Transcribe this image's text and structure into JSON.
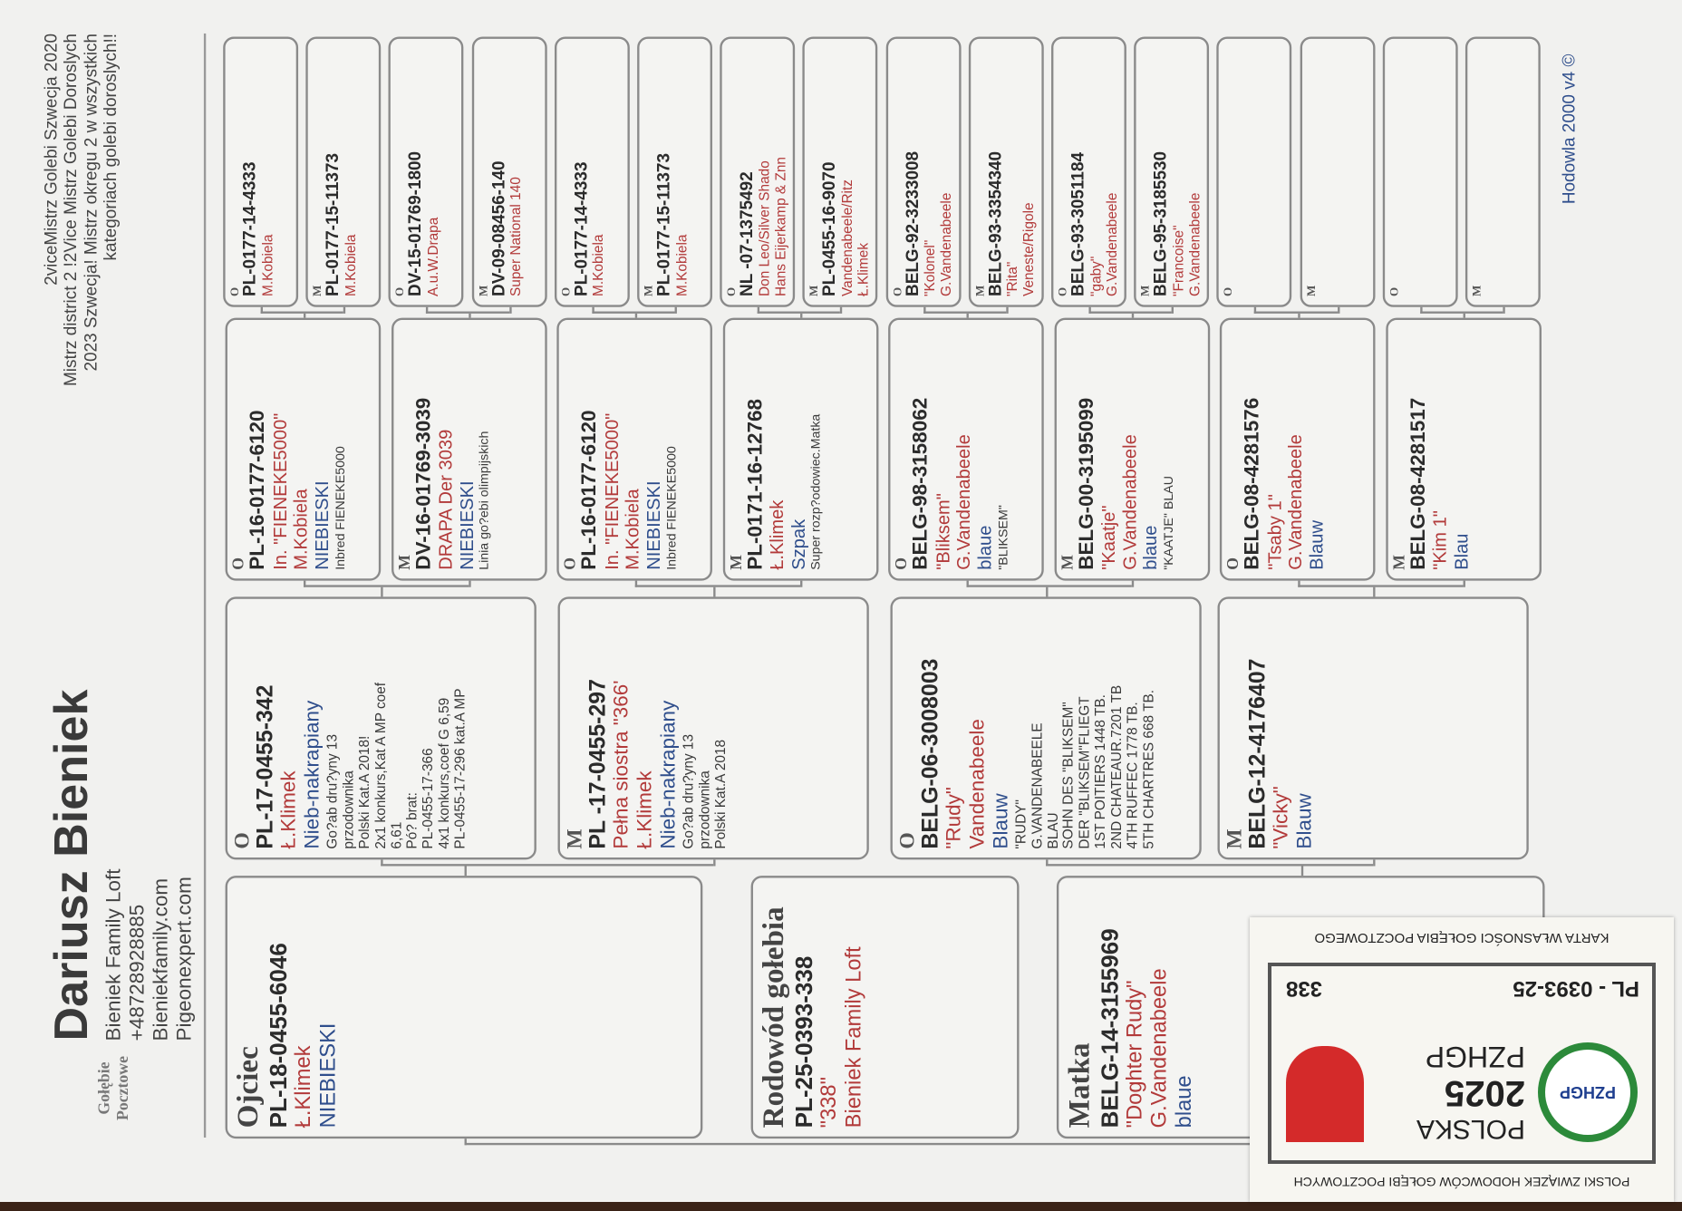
{
  "header": {
    "name": "Dariusz Bieniek",
    "logo": "Gołębie Pocztowe",
    "contact": [
      "Bieniek Family Loft",
      "+48728928885",
      "Bieniekfamily.com",
      "Pigeonexpert.com"
    ],
    "achievements": [
      "2viceMistrz Golebi Szwecja 2020",
      "Mistrz district 2 !2Vice Mistrz Golebi Doroslych",
      "2023 Szwecja! Mistrz okregu 2 w wszystkich",
      "kategoriach golebi doroslych!!"
    ]
  },
  "pedigree": {
    "father": {
      "label": "Ojciec",
      "ring": "PL-18-0455-6046",
      "lines": [
        {
          "text": "Ł.Klimek",
          "tone": "red"
        },
        {
          "text": "NIEBIESKI",
          "tone": "blue"
        }
      ]
    },
    "subject": {
      "label": "Rodowód gołebia",
      "ring": "PL-25-0393-338",
      "lines": [
        {
          "text": "\"338\"",
          "tone": "red"
        },
        {
          "text": "Bieniek Family Loft",
          "tone": "red"
        }
      ]
    },
    "mother": {
      "label": "Matka",
      "ring": "BELG-14-3155969",
      "lines": [
        {
          "text": "\"Doghter Rudy\"",
          "tone": "red"
        },
        {
          "text": "G.Vandenabeele",
          "tone": "red"
        },
        {
          "text": "blaue",
          "tone": "blue"
        }
      ]
    },
    "gen2": [
      {
        "sex": "O",
        "ring": "PL-17-0455-342",
        "lines": [
          {
            "text": "Ł.Klimek",
            "tone": "red"
          },
          {
            "text": "Nieb-nakrapiany",
            "tone": "blue"
          },
          {
            "text": "Go?ab dru?yny 13",
            "tone": "note"
          },
          {
            "text": "przodownika",
            "tone": "note"
          },
          {
            "text": "Polski Kat.A 2018!",
            "tone": "note"
          },
          {
            "text": "2x1 konkurs,Kat A MP coef",
            "tone": "note"
          },
          {
            "text": "6,61",
            "tone": "note"
          },
          {
            "text": "Pó? brat:",
            "tone": "note"
          },
          {
            "text": "PL-0455-17-366",
            "tone": "note"
          },
          {
            "text": "4x1 konkurs,coef G 6,59",
            "tone": "note"
          },
          {
            "text": "PL-0455-17-296 kat.A MP",
            "tone": "note"
          }
        ]
      },
      {
        "sex": "M",
        "ring": "PL -17-0455-297",
        "lines": [
          {
            "text": "Pełna siostra \"366'",
            "tone": "red"
          },
          {
            "text": "Ł.Klimek",
            "tone": "red"
          },
          {
            "text": "Nieb-nakrapiany",
            "tone": "blue"
          },
          {
            "text": "Go?ab dru?yny 13",
            "tone": "note"
          },
          {
            "text": "przodownika",
            "tone": "note"
          },
          {
            "text": "Polski Kat.A 2018",
            "tone": "note"
          }
        ]
      },
      {
        "sex": "O",
        "ring": "BELG-06-3008003",
        "lines": [
          {
            "text": "\"Rudy\"",
            "tone": "red"
          },
          {
            "text": "Vandenabeele",
            "tone": "red"
          },
          {
            "text": "Blauw",
            "tone": "blue"
          },
          {
            "text": "\"RUDY\"",
            "tone": "note"
          },
          {
            "text": "G.VANDENABEELE",
            "tone": "note"
          },
          {
            "text": "BLAU",
            "tone": "note"
          },
          {
            "text": "SOHN DES \"BLIKSEM\"",
            "tone": "note"
          },
          {
            "text": "DER \"BLIKSEM\"FLIEGT",
            "tone": "note"
          },
          {
            "text": "1ST POITIERS 1448 TB.",
            "tone": "note"
          },
          {
            "text": "2ND CHATEAUR.7201 TB",
            "tone": "note"
          },
          {
            "text": "4TH RUFFEC    1778 TB.",
            "tone": "note"
          },
          {
            "text": "5TH  CHARTRES   668 TB.",
            "tone": "note"
          }
        ]
      },
      {
        "sex": "M",
        "ring": "BELG-12-4176407",
        "lines": [
          {
            "text": "\"Vicky\"",
            "tone": "red"
          },
          {
            "text": "Blauw",
            "tone": "blue"
          }
        ]
      }
    ],
    "gen3": [
      {
        "sex": "O",
        "ring": "PL-16-0177-6120",
        "lines": [
          {
            "text": "In. \"FIENEKE5000\"",
            "tone": "red"
          },
          {
            "text": "M.Kobiela",
            "tone": "red"
          },
          {
            "text": "NIEBIESKI",
            "tone": "blue"
          },
          {
            "text": "Inbred FIENEKE5000",
            "tone": "note"
          }
        ]
      },
      {
        "sex": "M",
        "ring": "DV-16-01769-3039",
        "lines": [
          {
            "text": "DRAPA Der 3039",
            "tone": "red"
          },
          {
            "text": "NIEBIESKI",
            "tone": "blue"
          },
          {
            "text": "Linia go?ebi olimpijskich",
            "tone": "note"
          }
        ]
      },
      {
        "sex": "O",
        "ring": "PL-16-0177-6120",
        "lines": [
          {
            "text": "In. \"FIENEKE5000\"",
            "tone": "red"
          },
          {
            "text": "M.Kobiela",
            "tone": "red"
          },
          {
            "text": "NIEBIESKI",
            "tone": "blue"
          },
          {
            "text": "Inbred FIENEKE5000",
            "tone": "note"
          }
        ]
      },
      {
        "sex": "M",
        "ring": "PL-0171-16-12768",
        "lines": [
          {
            "text": "Ł.Klimek",
            "tone": "red"
          },
          {
            "text": "Szpak",
            "tone": "blue"
          },
          {
            "text": "Super rozp?odowiec.Matka",
            "tone": "note"
          }
        ]
      },
      {
        "sex": "O",
        "ring": "BELG-98-3158062",
        "lines": [
          {
            "text": "\"Bliksem\"",
            "tone": "red"
          },
          {
            "text": "G.Vandenabeele",
            "tone": "red"
          },
          {
            "text": "blaue",
            "tone": "blue"
          },
          {
            "text": "\"BLIKSEM\"",
            "tone": "note"
          }
        ]
      },
      {
        "sex": "M",
        "ring": "BELG-00-3195099",
        "lines": [
          {
            "text": "\"Kaatje\"",
            "tone": "red"
          },
          {
            "text": "G.Vandenabeele",
            "tone": "red"
          },
          {
            "text": "blaue",
            "tone": "blue"
          },
          {
            "text": "\"KAATJE\" BLAU",
            "tone": "note"
          }
        ]
      },
      {
        "sex": "O",
        "ring": "BELG-08-4281576",
        "lines": [
          {
            "text": "\"Tsaby 1\"",
            "tone": "red"
          },
          {
            "text": "G.Vandenabeele",
            "tone": "red"
          },
          {
            "text": "Blauw",
            "tone": "blue"
          }
        ]
      },
      {
        "sex": "M",
        "ring": "BELG-08-4281517",
        "lines": [
          {
            "text": "\"Kim 1\"",
            "tone": "red"
          },
          {
            "text": "Blau",
            "tone": "blue"
          }
        ]
      }
    ],
    "gen4": [
      {
        "sex": "O",
        "ring": "PL-0177-14-4333",
        "lines": [
          {
            "text": "M.Kobiela",
            "tone": "red"
          }
        ]
      },
      {
        "sex": "M",
        "ring": "PL-0177-15-11373",
        "lines": [
          {
            "text": "M.Kobiela",
            "tone": "red"
          }
        ]
      },
      {
        "sex": "O",
        "ring": "DV-15-01769-1800",
        "lines": [
          {
            "text": "A.u.W.Drapa",
            "tone": "red"
          }
        ]
      },
      {
        "sex": "M",
        "ring": "DV-09-08456-140",
        "lines": [
          {
            "text": "Super National 140",
            "tone": "red"
          }
        ]
      },
      {
        "sex": "O",
        "ring": "PL-0177-14-4333",
        "lines": [
          {
            "text": "M.Kobiela",
            "tone": "red"
          }
        ]
      },
      {
        "sex": "M",
        "ring": "PL-0177-15-11373",
        "lines": [
          {
            "text": "M.Kobiela",
            "tone": "red"
          }
        ]
      },
      {
        "sex": "O",
        "ring": "NL -07-1375492",
        "lines": [
          {
            "text": "Don Leo/Silver Shado",
            "tone": "red"
          },
          {
            "text": "Hans Eijerkamp & Znn",
            "tone": "red"
          }
        ]
      },
      {
        "sex": "M",
        "ring": "PL-0455-16-9070",
        "lines": [
          {
            "text": "Vandenabeele/Ritz",
            "tone": "red"
          },
          {
            "text": "Ł.Klimek",
            "tone": "red"
          }
        ]
      },
      {
        "sex": "O",
        "ring": "BELG-92-3233008",
        "lines": [
          {
            "text": "\"Kolonel\"",
            "tone": "red"
          },
          {
            "text": "G.Vandenabeele",
            "tone": "red"
          }
        ]
      },
      {
        "sex": "M",
        "ring": "BELG-93-3354340",
        "lines": [
          {
            "text": "\"Rita\"",
            "tone": "red"
          },
          {
            "text": "Veneste/Rigole",
            "tone": "red"
          }
        ]
      },
      {
        "sex": "O",
        "ring": "BELG-93-3051184",
        "lines": [
          {
            "text": "\"gaby\"",
            "tone": "red"
          },
          {
            "text": "G.Vandenabeele",
            "tone": "red"
          }
        ]
      },
      {
        "sex": "M",
        "ring": "BELG-95-3185530",
        "lines": [
          {
            "text": "\"Francoise\"",
            "tone": "red"
          },
          {
            "text": "G.Vandenabeele",
            "tone": "red"
          }
        ]
      },
      {
        "sex": "O"
      },
      {
        "sex": "M"
      },
      {
        "sex": "O"
      },
      {
        "sex": "M"
      }
    ]
  },
  "footer": "Hodowla 2000 v4 ©",
  "card": {
    "top": "POLSKI ZWIĄZEK HODOWCÓW GOŁĘBI POCZTOWYCH",
    "emblem": "PZHGP",
    "country": "POLSKA",
    "year": "2025",
    "org": "PZHGP",
    "ring": "PL - 0393-25",
    "number": "338",
    "bottom": "KARTA WŁASNOŚCI GOŁĘBIA POCZTOWEGO"
  }
}
